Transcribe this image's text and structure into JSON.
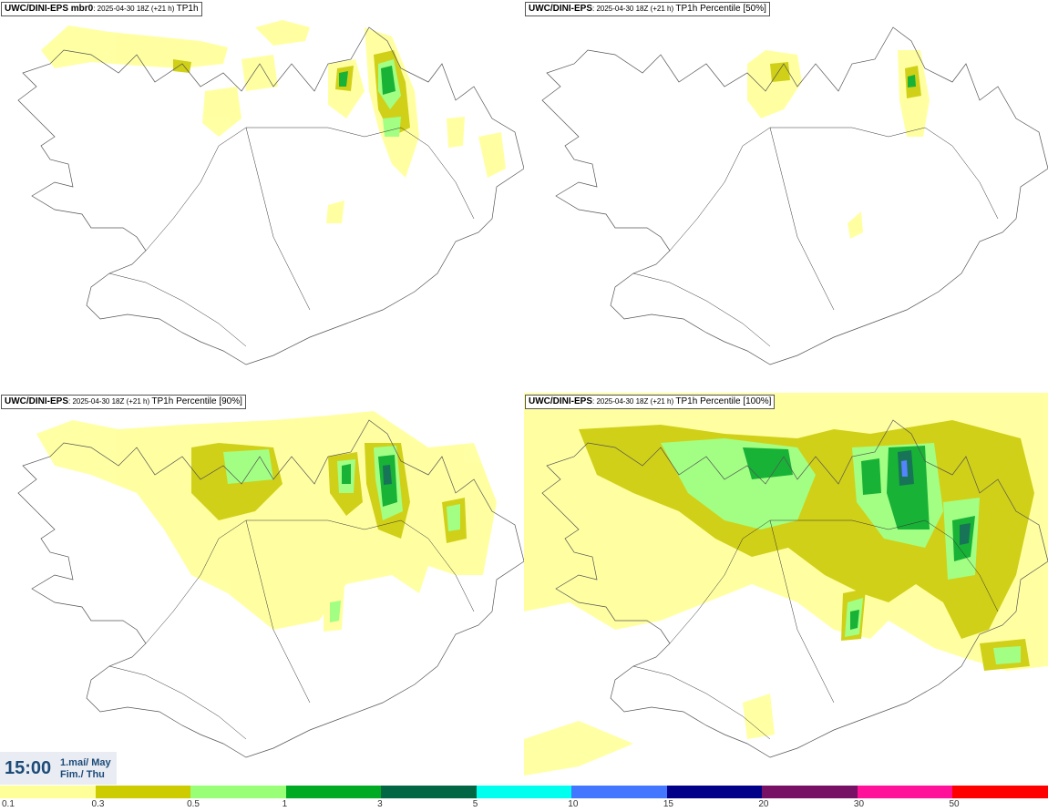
{
  "panels": [
    {
      "model": "UWC/DINI-EPS mbr0",
      "run": ": 2025-04-30 18Z (+21 h) ",
      "field": "TP1h"
    },
    {
      "model": "UWC/DINI-EPS",
      "run": ": 2025-04-30 18Z (+21 h) ",
      "field": "TP1h Percentile [50%]"
    },
    {
      "model": "UWC/DINI-EPS",
      "run": ": 2025-04-30 18Z (+21 h) ",
      "field": "TP1h Percentile [90%]"
    },
    {
      "model": "UWC/DINI-EPS",
      "run": ": 2025-04-30 18Z (+21 h) ",
      "field": "TP1h Percentile [100%]"
    }
  ],
  "valid_time": {
    "time": "15:00",
    "date_line1": "1.maí/ May",
    "date_line2": "Fim./ Thu"
  },
  "legend": {
    "colors": [
      "#ffff99",
      "#cccc00",
      "#99ff77",
      "#00aa22",
      "#006644",
      "#00ffee",
      "#4477ff",
      "#000088",
      "#771166",
      "#ff1199",
      "#ff0000"
    ],
    "ticks": [
      "0.1",
      "0.3",
      "0.5",
      "1",
      "3",
      "5",
      "10",
      "15",
      "20",
      "30",
      "50"
    ]
  }
}
